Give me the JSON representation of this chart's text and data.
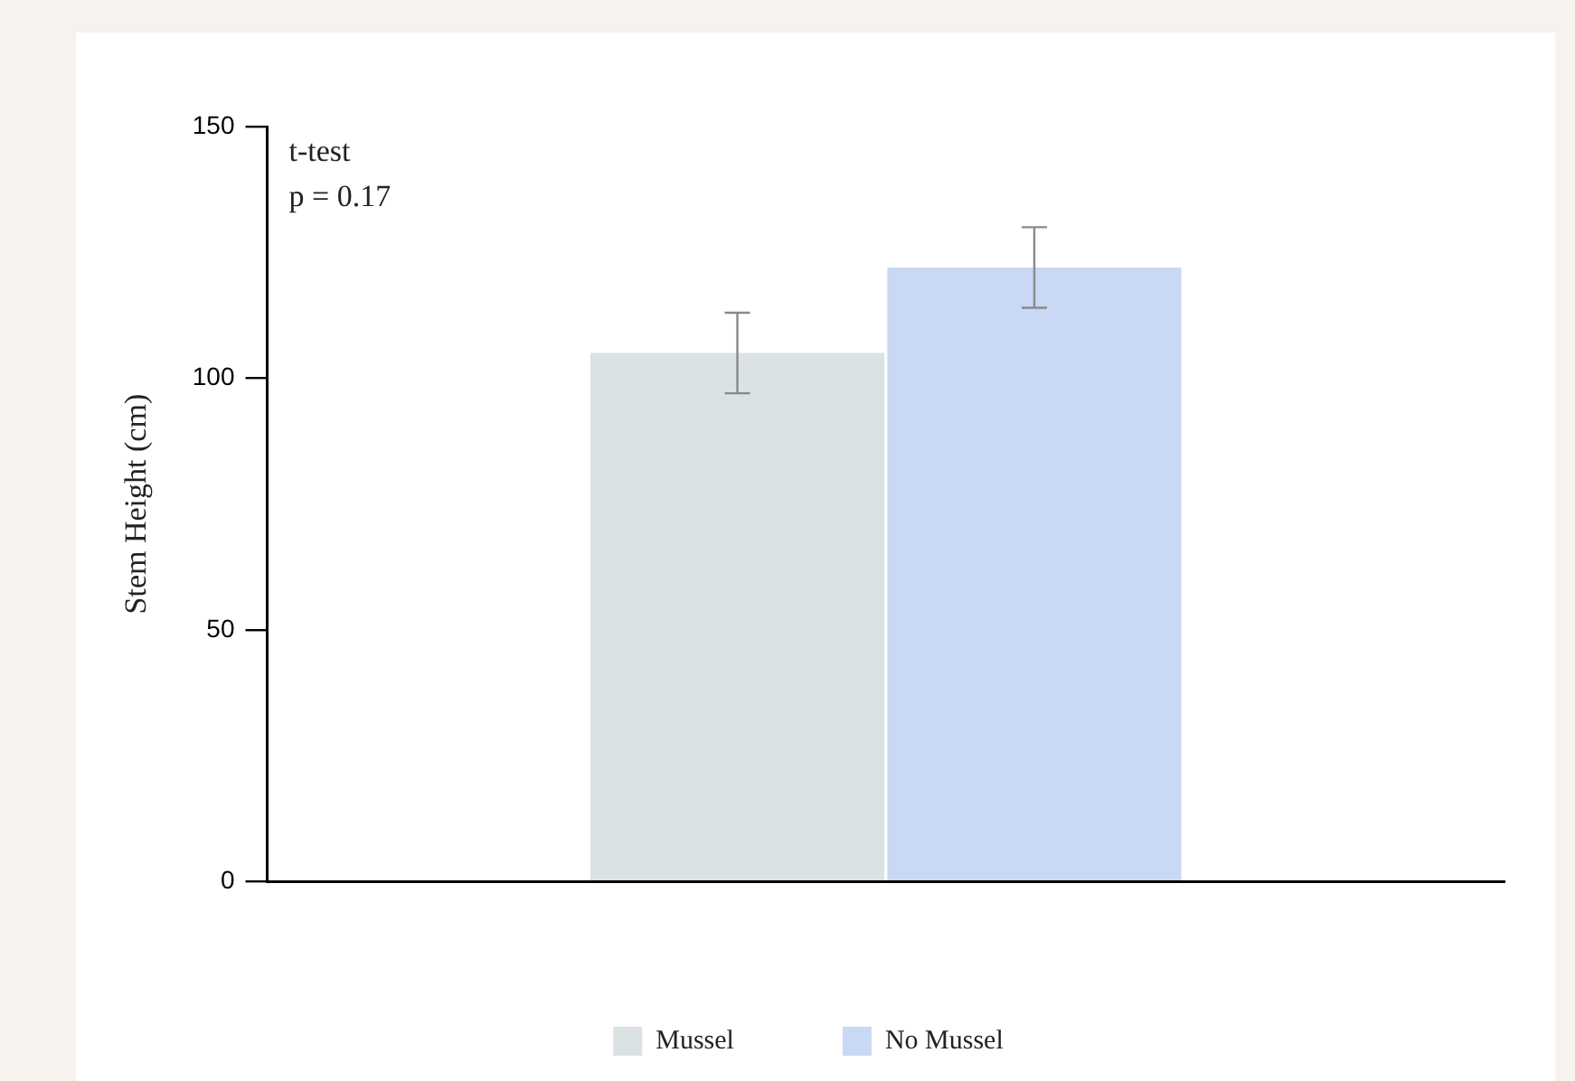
{
  "chart_data": {
    "type": "bar",
    "ylabel": "Stem Height (cm)",
    "categories": [
      null
    ],
    "series": [
      {
        "name": "Mussel",
        "color": "#dae2e3",
        "values": [
          105
        ],
        "errors": [
          8
        ]
      },
      {
        "name": "No Mussel",
        "color": "#c8d8f5",
        "values": [
          122
        ],
        "errors": [
          8
        ]
      }
    ],
    "ylim": [
      0,
      150
    ],
    "yticks": [
      0,
      50,
      100,
      150
    ],
    "grid": false,
    "legend": "bottom",
    "annotations": [
      "t-test",
      "p = 0.17"
    ]
  }
}
